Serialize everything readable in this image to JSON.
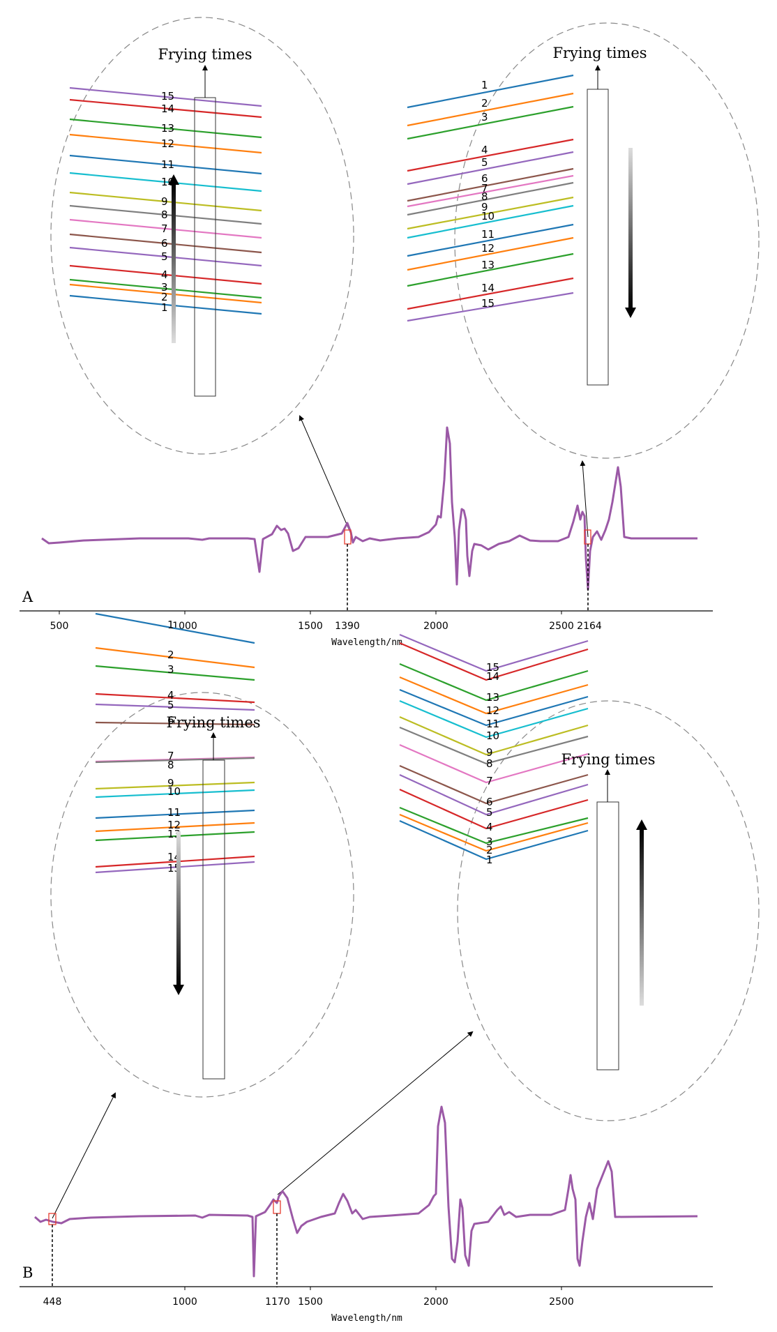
{
  "chart_data": [
    {
      "panel_label": "A",
      "type": "line",
      "xlabel": "Wavelength/nm",
      "xticks": [
        500,
        1000,
        1500,
        2000,
        2500
      ],
      "marked_wavelengths": [
        1390,
        2164
      ],
      "xlim": [
        400,
        2520
      ],
      "insets": [
        {
          "title": "Frying times",
          "wavelength": 1390,
          "order_top_to_bottom": [
            15,
            14,
            13,
            12,
            11,
            10,
            9,
            8,
            7,
            6,
            5,
            4,
            3,
            2,
            1
          ],
          "arrow": "up"
        },
        {
          "title": "Frying times",
          "wavelength": 2164,
          "order_top_to_bottom": [
            1,
            2,
            3,
            4,
            5,
            6,
            7,
            8,
            9,
            10,
            11,
            12,
            13,
            14,
            15
          ],
          "arrow": "down"
        }
      ]
    },
    {
      "panel_label": "B",
      "type": "line",
      "xlabel": "Wavelength/nm",
      "xticks": [
        1000,
        1500,
        2000,
        2500
      ],
      "marked_wavelengths": [
        448,
        1170
      ],
      "xlim": [
        400,
        2520
      ],
      "insets": [
        {
          "title": "Frying times",
          "wavelength": 448,
          "order_top_to_bottom": [
            1,
            2,
            3,
            4,
            5,
            6,
            7,
            8,
            9,
            10,
            11,
            12,
            13,
            14,
            15
          ],
          "arrow": "down"
        },
        {
          "title": "Frying times",
          "wavelength": 1170,
          "order_top_to_bottom": [
            15,
            14,
            13,
            12,
            11,
            10,
            9,
            8,
            7,
            6,
            5,
            4,
            3,
            2,
            1
          ],
          "arrow": "up"
        }
      ]
    }
  ],
  "series_colors": [
    "#1f77b4",
    "#ff7f0e",
    "#2ca02c",
    "#d62728",
    "#9467bd",
    "#8c564b",
    "#e377c2",
    "#7f7f7f",
    "#bcbd22",
    "#17becf",
    "#1f77b4",
    "#ff7f0e",
    "#2ca02c",
    "#d62728",
    "#9467bd"
  ],
  "spectrum_color": "#9b59a6"
}
